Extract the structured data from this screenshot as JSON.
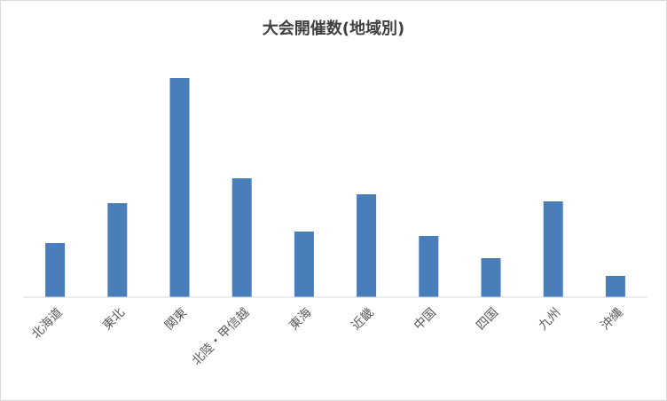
{
  "chart_data": {
    "type": "bar",
    "title": "大会開催数(地域別)",
    "categories": [
      "北海道",
      "東北",
      "関東",
      "北陸・甲信越",
      "東海",
      "近畿",
      "中国",
      "四国",
      "九州",
      "沖縄"
    ],
    "values": [
      61,
      106,
      247,
      134,
      74,
      116,
      69,
      44,
      108,
      24
    ],
    "color": "#4a7ebb",
    "ylim": [
      0,
      250
    ]
  }
}
